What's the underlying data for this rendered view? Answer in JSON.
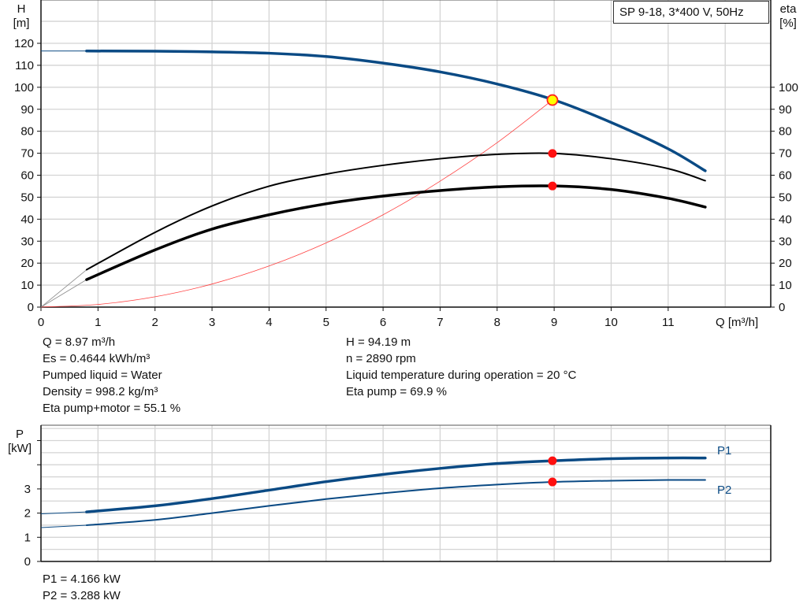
{
  "title_box": "SP 9-18, 3*400 V, 50Hz",
  "chart_data": [
    {
      "type": "line",
      "xlabel": "Q [m³/h]",
      "ylabel_left": [
        "H",
        "[m]"
      ],
      "ylabel_right": [
        "eta",
        "[%]"
      ],
      "xlim": [
        0,
        12.8
      ],
      "ylim_left": [
        0,
        130
      ],
      "ylim_right": [
        0,
        130
      ],
      "x_ticks": [
        0,
        1,
        2,
        3,
        4,
        5,
        6,
        7,
        8,
        9,
        10,
        11
      ],
      "y_ticks_left": [
        0,
        10,
        20,
        30,
        40,
        50,
        60,
        70,
        80,
        90,
        100,
        110,
        120
      ],
      "y_ticks_right": [
        0,
        10,
        20,
        30,
        40,
        50,
        60,
        70,
        80,
        90,
        100
      ],
      "grid": true,
      "series": [
        {
          "key": "H",
          "color": "#0a4a84",
          "x": [
            0,
            0.8,
            2,
            3,
            4,
            5,
            6,
            7,
            8,
            9,
            10,
            11,
            11.65
          ],
          "values": [
            116.5,
            116.5,
            116.4,
            116.1,
            115.5,
            114,
            111,
            107,
            101.5,
            94.2,
            84,
            72,
            62
          ]
        },
        {
          "key": "eta_pump",
          "color": "#000000",
          "x": [
            0.8,
            2,
            3,
            4,
            5,
            6,
            7,
            8,
            9,
            10,
            11,
            11.65
          ],
          "values": [
            17,
            34,
            46,
            55,
            60.5,
            64.5,
            67.5,
            69.5,
            69.9,
            67.5,
            63,
            57.5
          ]
        },
        {
          "key": "eta_total",
          "color": "#000000",
          "x": [
            0.8,
            2,
            3,
            4,
            5,
            6,
            7,
            8,
            9,
            10,
            11,
            11.65
          ],
          "values": [
            12.5,
            26,
            35.5,
            42,
            47,
            50.5,
            53,
            54.7,
            55.1,
            53.5,
            49.5,
            45.5
          ]
        },
        {
          "key": "system_curve",
          "color": "#ff4040",
          "x": [
            0,
            1,
            2,
            3,
            4,
            5,
            6,
            7,
            8,
            8.97
          ],
          "values": [
            0,
            1.2,
            4.7,
            10.5,
            18.7,
            29.2,
            42,
            57.3,
            74.8,
            94.19
          ]
        }
      ],
      "duty_point": {
        "Q": 8.97,
        "H": 94.19,
        "eta_pump": 69.9,
        "eta_total": 55.1
      }
    },
    {
      "type": "line",
      "ylabel": [
        "P",
        "[kW]"
      ],
      "xlim": [
        0,
        12.8
      ],
      "ylim": [
        0,
        5.6
      ],
      "y_ticks": [
        0,
        1,
        2,
        3,
        4,
        5
      ],
      "y_tick_labels": [
        "0",
        "1",
        "2",
        "3",
        "",
        ""
      ],
      "grid": true,
      "series": [
        {
          "name": "P1",
          "color": "#0a4a84",
          "x": [
            0,
            0.8,
            2,
            3,
            4,
            5,
            6,
            7,
            8,
            9,
            10,
            11,
            11.65
          ],
          "values": [
            1.97,
            2.05,
            2.3,
            2.6,
            2.95,
            3.3,
            3.6,
            3.85,
            4.05,
            4.166,
            4.25,
            4.28,
            4.28
          ]
        },
        {
          "name": "P2",
          "color": "#0a4a84",
          "x": [
            0,
            0.8,
            2,
            3,
            4,
            5,
            6,
            7,
            8,
            9,
            10,
            11,
            11.65
          ],
          "values": [
            1.4,
            1.5,
            1.72,
            2.0,
            2.3,
            2.58,
            2.82,
            3.03,
            3.18,
            3.288,
            3.34,
            3.37,
            3.37
          ]
        }
      ],
      "duty_point": {
        "Q": 8.97,
        "P1": 4.166,
        "P2": 3.288
      }
    }
  ],
  "info_left": [
    "Q = 8.97 m³/h",
    "Es = 0.4644 kWh/m³",
    "Pumped liquid = Water",
    "Density = 998.2 kg/m³",
    "Eta pump+motor = 55.1 %"
  ],
  "info_right": [
    "H = 94.19 m",
    "n = 2890 rpm",
    "Liquid temperature during operation = 20 °C",
    "Eta pump = 69.9 %"
  ],
  "power_info": [
    "P1 = 4.166 kW",
    "P2 = 3.288 kW"
  ]
}
